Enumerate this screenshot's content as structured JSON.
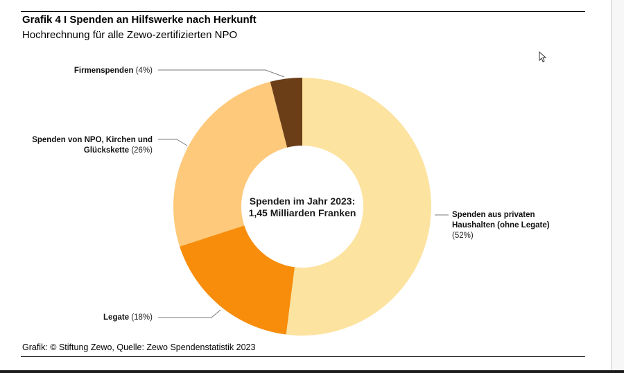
{
  "header": {
    "title": "Grafik 4 I Spenden an Hilfswerke nach Herkunft",
    "subtitle": "Hochrechnung für alle Zewo-zertifizierten NPO"
  },
  "footer": {
    "source": "Grafik: © Stiftung Zewo, Quelle: Zewo Spendenstatistik 2023"
  },
  "chart_data": {
    "type": "pie",
    "title": "Grafik 4 I Spenden an Hilfswerke nach Herkunft",
    "subtitle": "Hochrechnung für alle Zewo-zertifizierten NPO",
    "center_label": [
      "Spenden im Jahr 2023:",
      "1,45 Milliarden Franken"
    ],
    "slices": [
      {
        "name": "Spenden aus privaten Haushalten (ohne Legate)",
        "name_lines": [
          "Spenden aus privaten",
          "Haushalten (ohne Legate)"
        ],
        "value": 52,
        "value_label": "(52%)",
        "color": "#fde3a0"
      },
      {
        "name": "Legate",
        "name_lines": [
          "Legate"
        ],
        "value": 18,
        "value_label": "(18%)",
        "color": "#f78d0b"
      },
      {
        "name": "Spenden von NPO, Kirchen und Glückskette",
        "name_lines": [
          "Spenden von NPO, Kirchen und",
          "Glückskette"
        ],
        "value": 26,
        "value_label": "(26%)",
        "color": "#fec97a"
      },
      {
        "name": "Firmenspenden",
        "name_lines": [
          "Firmenspenden"
        ],
        "value": 4,
        "value_label": "(4%)",
        "color": "#6b3e17"
      }
    ]
  }
}
